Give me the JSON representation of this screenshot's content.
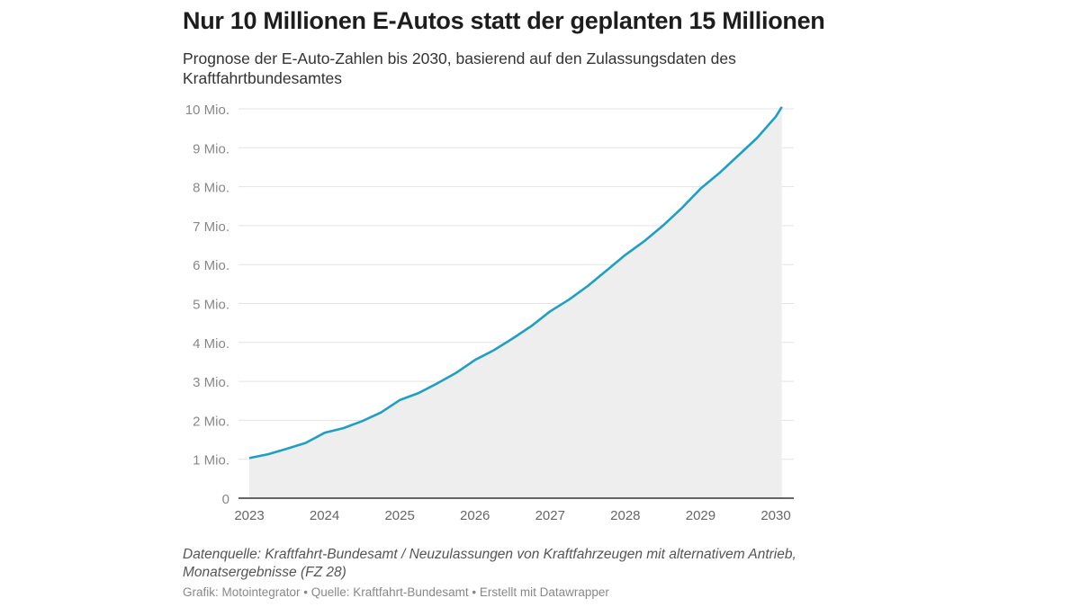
{
  "chart_data": {
    "type": "area",
    "title": "Nur 10 Millionen E-Autos statt der geplanten 15 Millionen",
    "subtitle": "Prognose der E-Auto-Zahlen bis 2030, basierend auf den Zulassungsdaten des Kraftfahrtbundesamtes",
    "xlabel": "",
    "ylabel": "",
    "xlim": [
      2023,
      2030.2
    ],
    "ylim": [
      0,
      10
    ],
    "grid": true,
    "x_ticks": [
      "2023",
      "2024",
      "2025",
      "2026",
      "2027",
      "2028",
      "2029",
      "2030"
    ],
    "y_ticks": [
      {
        "value": 0,
        "label": "0"
      },
      {
        "value": 1,
        "label": "1 Mio."
      },
      {
        "value": 2,
        "label": "2 Mio."
      },
      {
        "value": 3,
        "label": "3 Mio."
      },
      {
        "value": 4,
        "label": "4 Mio."
      },
      {
        "value": 5,
        "label": "5 Mio."
      },
      {
        "value": 6,
        "label": "6 Mio."
      },
      {
        "value": 7,
        "label": "7 Mio."
      },
      {
        "value": 8,
        "label": "8 Mio."
      },
      {
        "value": 9,
        "label": "9 Mio."
      },
      {
        "value": 10,
        "label": "10 Mio."
      }
    ],
    "line_color": "#1f9fc4",
    "fill_color": "#eeeeee",
    "x": [
      2023.0,
      2023.25,
      2023.5,
      2023.75,
      2024.0,
      2024.25,
      2024.5,
      2024.75,
      2025.0,
      2025.25,
      2025.5,
      2025.75,
      2026.0,
      2026.25,
      2026.5,
      2026.75,
      2027.0,
      2027.25,
      2027.5,
      2027.75,
      2028.0,
      2028.25,
      2028.5,
      2028.75,
      2029.0,
      2029.25,
      2029.5,
      2029.75,
      2030.0,
      2030.08
    ],
    "values": [
      1.03,
      1.13,
      1.27,
      1.42,
      1.68,
      1.8,
      1.98,
      2.2,
      2.52,
      2.7,
      2.95,
      3.22,
      3.55,
      3.8,
      4.1,
      4.42,
      4.8,
      5.1,
      5.45,
      5.85,
      6.25,
      6.6,
      7.0,
      7.45,
      7.95,
      8.35,
      8.8,
      9.25,
      9.8,
      10.05
    ]
  },
  "notes": "Datenquelle: Kraftfahrt-Bundesamt / Neuzulassungen von Kraftfahrzeugen mit alternativem Antrieb, Monatsergebnisse (FZ 28)",
  "byline": "Grafik: Motointegrator • Quelle: Kraftfahrt-Bundesamt • Erstellt mit Datawrapper"
}
